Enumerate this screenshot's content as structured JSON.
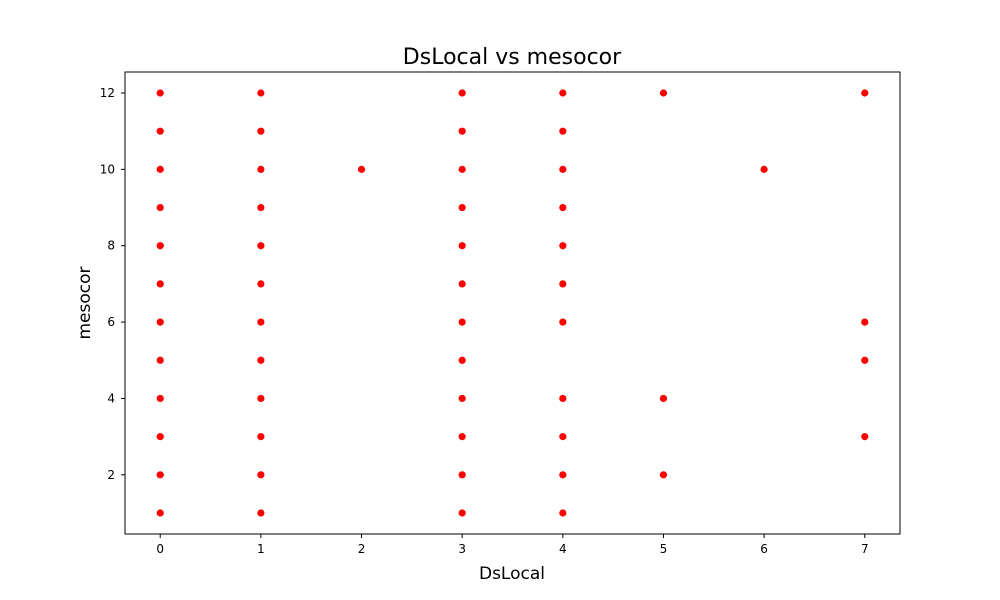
{
  "chart_data": {
    "type": "scatter",
    "title": "DsLocal vs mesocor",
    "xlabel": "DsLocal",
    "ylabel": "mesocor",
    "xlim": [
      -0.35,
      7.35
    ],
    "ylim": [
      0.45,
      12.55
    ],
    "x_ticks": [
      0,
      1,
      2,
      3,
      4,
      5,
      6,
      7
    ],
    "y_ticks": [
      2,
      4,
      6,
      8,
      10,
      12
    ],
    "grid": false,
    "legend": "none",
    "marker_color": "#ff0000",
    "series": [
      {
        "points": [
          [
            0,
            1
          ],
          [
            0,
            2
          ],
          [
            0,
            3
          ],
          [
            0,
            4
          ],
          [
            0,
            5
          ],
          [
            0,
            6
          ],
          [
            0,
            7
          ],
          [
            0,
            8
          ],
          [
            0,
            9
          ],
          [
            0,
            10
          ],
          [
            0,
            11
          ],
          [
            0,
            12
          ],
          [
            1,
            1
          ],
          [
            1,
            2
          ],
          [
            1,
            3
          ],
          [
            1,
            4
          ],
          [
            1,
            5
          ],
          [
            1,
            6
          ],
          [
            1,
            7
          ],
          [
            1,
            8
          ],
          [
            1,
            9
          ],
          [
            1,
            10
          ],
          [
            1,
            11
          ],
          [
            1,
            12
          ],
          [
            2,
            10
          ],
          [
            3,
            1
          ],
          [
            3,
            2
          ],
          [
            3,
            3
          ],
          [
            3,
            4
          ],
          [
            3,
            5
          ],
          [
            3,
            6
          ],
          [
            3,
            7
          ],
          [
            3,
            8
          ],
          [
            3,
            9
          ],
          [
            3,
            10
          ],
          [
            3,
            11
          ],
          [
            3,
            12
          ],
          [
            4,
            1
          ],
          [
            4,
            2
          ],
          [
            4,
            3
          ],
          [
            4,
            4
          ],
          [
            4,
            6
          ],
          [
            4,
            7
          ],
          [
            4,
            8
          ],
          [
            4,
            9
          ],
          [
            4,
            10
          ],
          [
            4,
            11
          ],
          [
            4,
            12
          ],
          [
            5,
            2
          ],
          [
            5,
            4
          ],
          [
            5,
            12
          ],
          [
            6,
            10
          ],
          [
            7,
            3
          ],
          [
            7,
            5
          ],
          [
            7,
            6
          ],
          [
            7,
            12
          ]
        ]
      }
    ]
  }
}
